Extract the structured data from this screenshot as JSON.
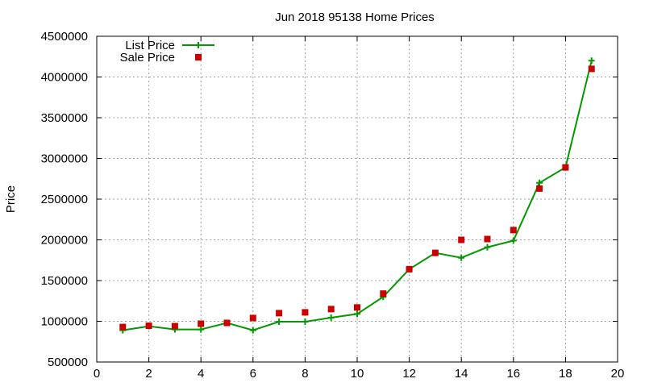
{
  "chart_data": {
    "type": "line",
    "title": "Jun 2018 95138 Home Prices",
    "xlabel": "",
    "ylabel": "Price",
    "xlim": [
      0,
      20
    ],
    "ylim": [
      500000,
      4500000
    ],
    "xticks": [
      0,
      2,
      4,
      6,
      8,
      10,
      12,
      14,
      16,
      18,
      20
    ],
    "yticks": [
      500000,
      1000000,
      1500000,
      2000000,
      2500000,
      3000000,
      3500000,
      4000000,
      4500000
    ],
    "grid": true,
    "legend_position": "top-left",
    "series": [
      {
        "name": "List Price",
        "style": "line-with-plus-markers",
        "color": "#009900",
        "x": [
          1,
          2,
          3,
          4,
          5,
          6,
          7,
          8,
          9,
          10,
          11,
          12,
          13,
          14,
          15,
          16,
          17,
          18,
          19
        ],
        "y": [
          890000,
          940000,
          900000,
          900000,
          980000,
          890000,
          995000,
          995000,
          1045000,
          1090000,
          1300000,
          1640000,
          1840000,
          1780000,
          1910000,
          1990000,
          2700000,
          2890000,
          4200000
        ]
      },
      {
        "name": "Sale Price",
        "style": "square-markers",
        "color": "#cc0000",
        "x": [
          1,
          2,
          3,
          4,
          5,
          6,
          7,
          8,
          9,
          10,
          11,
          12,
          13,
          14,
          15,
          16,
          17,
          18,
          19
        ],
        "y": [
          930000,
          945000,
          940000,
          970000,
          980000,
          1040000,
          1100000,
          1110000,
          1150000,
          1170000,
          1340000,
          1640000,
          1840000,
          2000000,
          2010000,
          2120000,
          2630000,
          2890000,
          4100000
        ]
      }
    ]
  }
}
